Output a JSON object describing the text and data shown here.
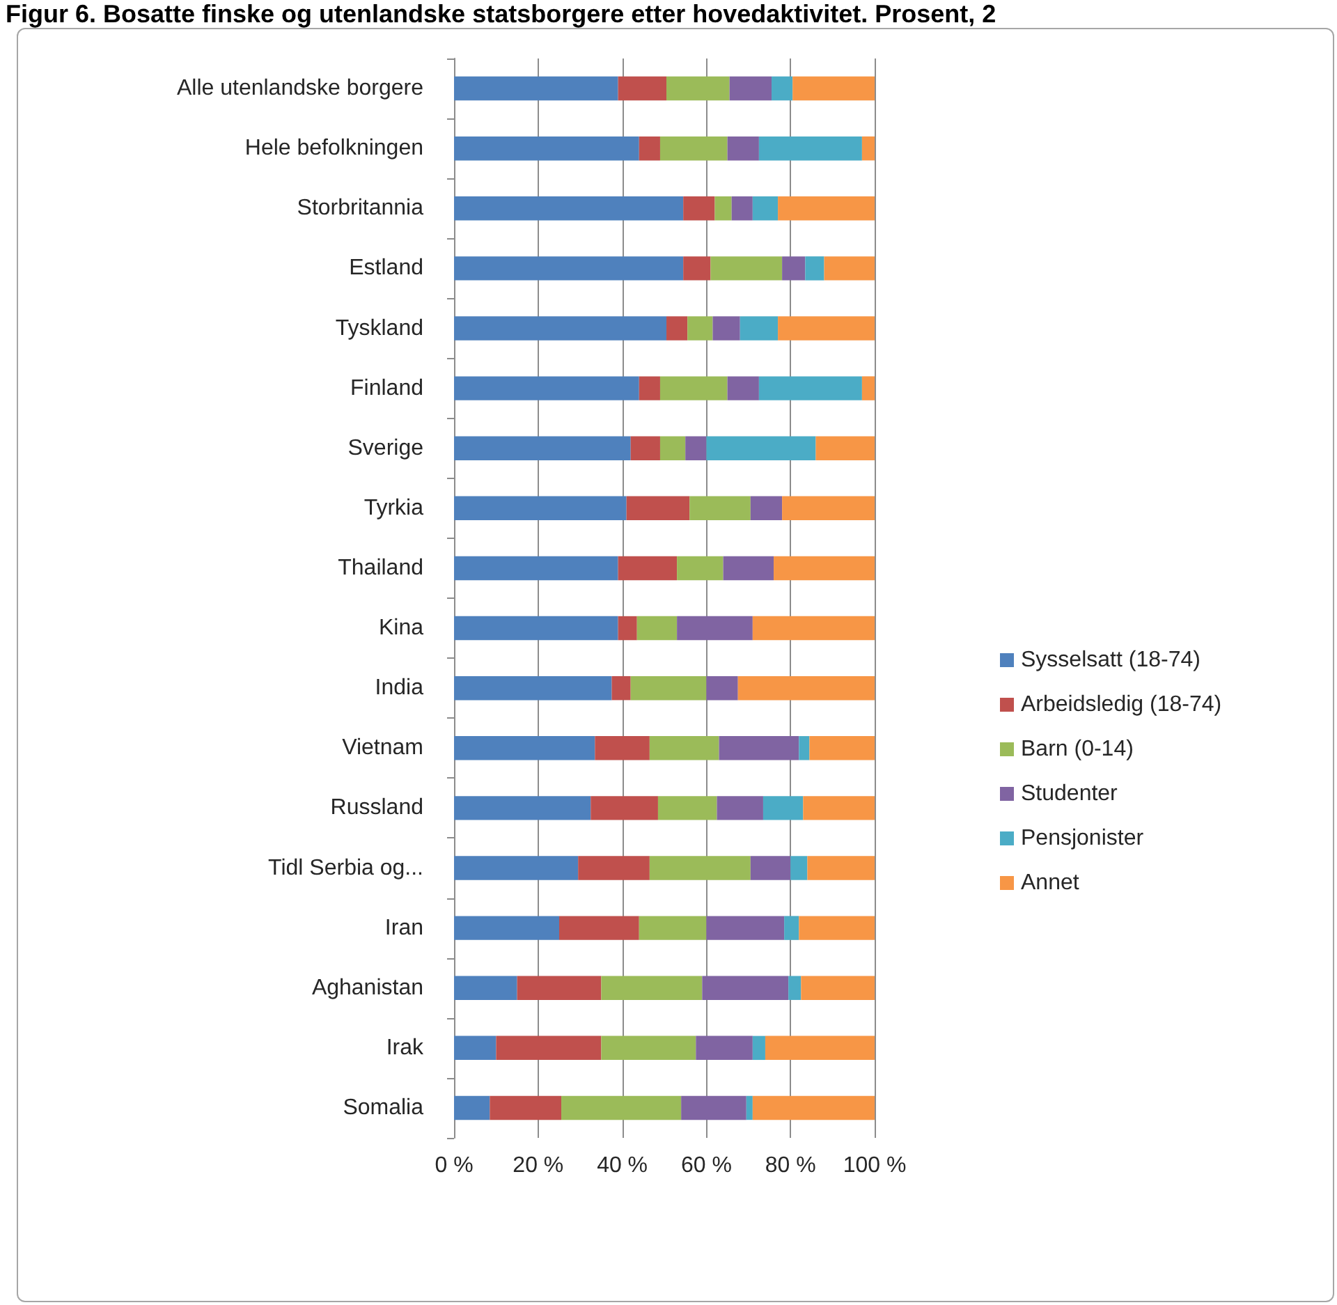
{
  "chart_data": {
    "type": "bar",
    "orientation": "horizontal",
    "stacked": true,
    "title": "Figur 6. Bosatte finske og utenlandske statsborgere etter hovedaktivitet. Prosent, 2",
    "categories": [
      "Alle utenlandske borgere",
      "Hele befolkningen",
      "Storbritannia",
      "Estland",
      "Tyskland",
      "Finland",
      "Sverige",
      "Tyrkia",
      "Thailand",
      "Kina",
      "India",
      "Vietnam",
      "Russland",
      "Tidl Serbia og...",
      "Iran",
      "Aghanistan",
      "Irak",
      "Somalia"
    ],
    "series": [
      {
        "name": "Sysselsatt (18-74)",
        "color": "#4f81bd",
        "values": [
          39,
          44,
          54.5,
          54.5,
          50.5,
          44,
          42,
          41,
          39,
          39,
          37.5,
          33.5,
          32.5,
          29.5,
          25,
          15,
          10,
          8.5
        ]
      },
      {
        "name": "Arbeidsledig (18-74)",
        "color": "#c0504d",
        "values": [
          11.5,
          5,
          7.5,
          6.5,
          5,
          5,
          7,
          15,
          14,
          4.5,
          4.5,
          13,
          16,
          17,
          19,
          20,
          25,
          17
        ]
      },
      {
        "name": "Barn (0-14)",
        "color": "#9bbb59",
        "values": [
          15,
          16,
          4,
          17,
          6,
          16,
          6,
          14.5,
          11,
          9.5,
          18,
          16.5,
          14,
          24,
          16,
          24,
          22.5,
          28.5
        ]
      },
      {
        "name": "Studenter",
        "color": "#8064a2",
        "values": [
          10,
          7.5,
          5,
          5.5,
          6.5,
          7.5,
          5,
          7.5,
          12,
          18,
          7.5,
          19,
          11,
          9.5,
          18.5,
          20.5,
          13.5,
          15.5
        ]
      },
      {
        "name": "Pensjonister",
        "color": "#4bacc6",
        "values": [
          5,
          24.5,
          6,
          4.5,
          9,
          24.5,
          26,
          0,
          0,
          0,
          0,
          2.5,
          9.5,
          4,
          3.5,
          3,
          3,
          1.5
        ]
      },
      {
        "name": "Annet",
        "color": "#f79646",
        "values": [
          19.5,
          3,
          23,
          12,
          23,
          3,
          14,
          22,
          24,
          29,
          32.5,
          15.5,
          17,
          16,
          18,
          17.5,
          26,
          29
        ]
      }
    ],
    "xlim": [
      0,
      100
    ],
    "xticks": [
      {
        "value": 0,
        "label": "0 %"
      },
      {
        "value": 20,
        "label": "20 %"
      },
      {
        "value": 40,
        "label": "40 %"
      },
      {
        "value": 60,
        "label": "60 %"
      },
      {
        "value": 80,
        "label": "80 %"
      },
      {
        "value": 100,
        "label": "100 %"
      }
    ],
    "grid": "x",
    "legend": "right"
  }
}
